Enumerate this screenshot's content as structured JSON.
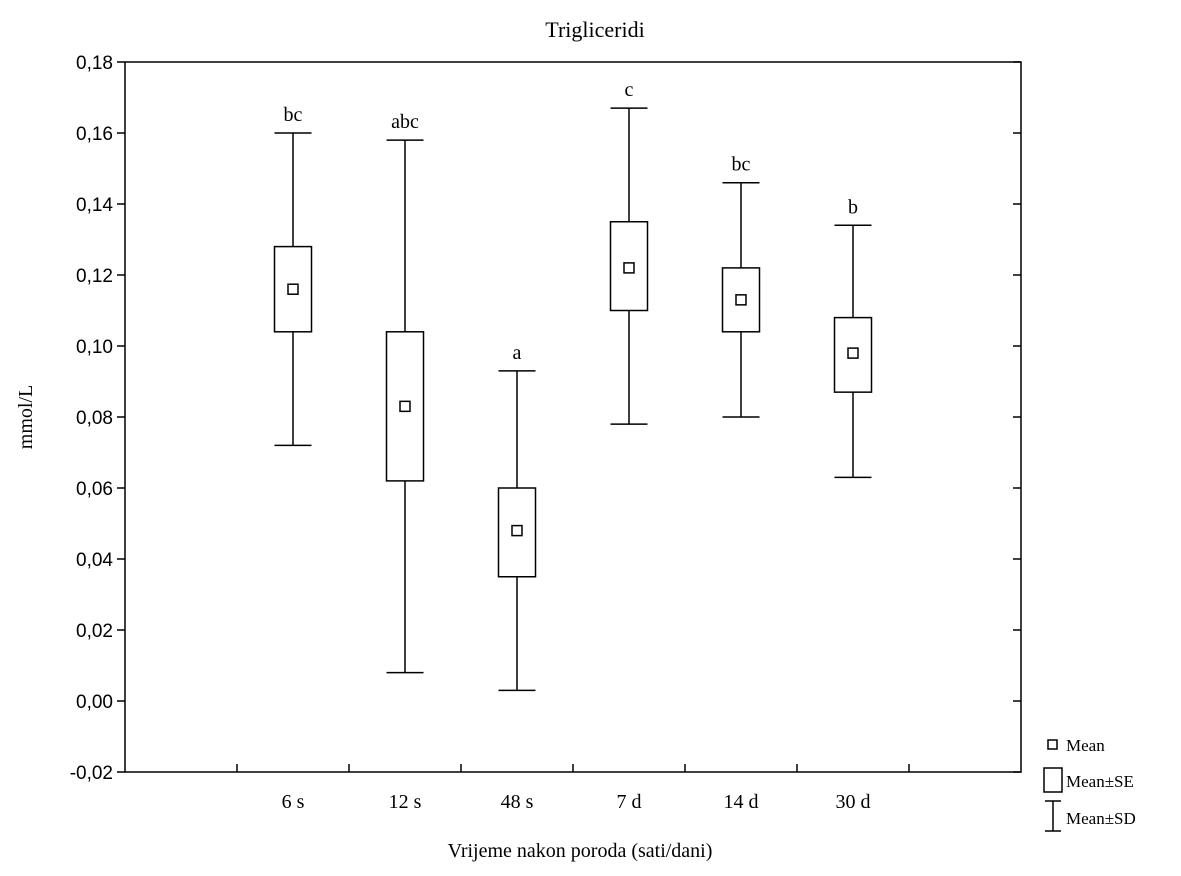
{
  "chart_data": {
    "type": "box",
    "title": "Trigliceridi",
    "xlabel": "Vrijeme nakon poroda (sati/dani)",
    "ylabel": "mmol/L",
    "ylim": [
      -0.02,
      0.18
    ],
    "yticks": [
      -0.02,
      0.0,
      0.02,
      0.04,
      0.06,
      0.08,
      0.1,
      0.12,
      0.14,
      0.16,
      0.18
    ],
    "ytick_labels": [
      "-0,02",
      "0,00",
      "0,02",
      "0,04",
      "0,06",
      "0,08",
      "0,10",
      "0,12",
      "0,14",
      "0,16",
      "0,18"
    ],
    "categories": [
      "6 s",
      "12 s",
      "48 s",
      "7 d",
      "14 d",
      "30 d"
    ],
    "mean": [
      0.116,
      0.083,
      0.048,
      0.122,
      0.113,
      0.098
    ],
    "se_low": [
      0.104,
      0.062,
      0.035,
      0.11,
      0.104,
      0.087
    ],
    "se_high": [
      0.128,
      0.104,
      0.06,
      0.135,
      0.122,
      0.108
    ],
    "sd_low": [
      0.072,
      0.008,
      0.003,
      0.078,
      0.08,
      0.063
    ],
    "sd_high": [
      0.16,
      0.158,
      0.093,
      0.167,
      0.146,
      0.134
    ],
    "annotations": [
      "bc",
      "abc",
      "a",
      "c",
      "bc",
      "b"
    ],
    "legend": {
      "position": "bottom-right",
      "items": [
        "Mean",
        "Mean±SE",
        "Mean±SD"
      ]
    },
    "grid": false
  }
}
